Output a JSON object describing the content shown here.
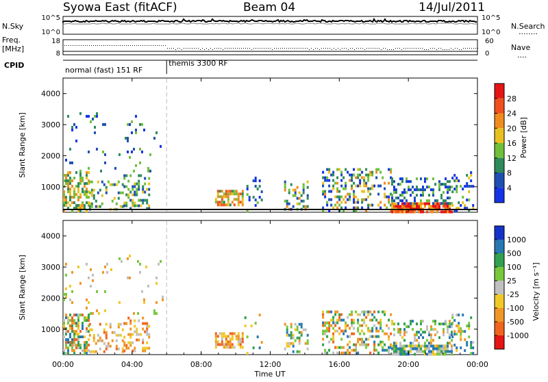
{
  "header": {
    "station": "Syowa East (fitACF)",
    "beam": "Beam 04",
    "date": "14/Jul/2011"
  },
  "top_panels": {
    "nsky_label": "N.Sky",
    "nsearch_label": "N.Search",
    "nsearch_legend": "........",
    "freq_label_line1": "Freq.",
    "freq_label_line2": "[MHz]",
    "nave_label": "Nave",
    "nave_legend": "....",
    "cpid_label": "CPID",
    "nsky_ticks": [
      "10^5",
      "10^0"
    ],
    "nsearch_ticks": [
      "10^5",
      "10^0"
    ],
    "freq_ticks": [
      "18",
      "8"
    ],
    "nave_ticks": [
      "60",
      "0"
    ],
    "cpid_segments": [
      {
        "label": "normal (fast) 151 RF",
        "start_h": 0,
        "end_h": 6
      },
      {
        "label": "themis 3300 RF",
        "start_h": 6,
        "end_h": 24
      }
    ]
  },
  "axes": {
    "ylabel": "Slant Range [km]",
    "xlabel": "Time UT",
    "y_ticks": [
      "1000",
      "2000",
      "3000",
      "4000"
    ],
    "x_ticks": [
      "00:00",
      "04:00",
      "08:00",
      "12:00",
      "16:00",
      "20:00",
      "00:00"
    ]
  },
  "colorbars": {
    "power": {
      "label": "Power [dB]",
      "ticks": [
        "4",
        "8",
        "12",
        "16",
        "20",
        "24",
        "28"
      ],
      "colors": [
        "#1432e6",
        "#1e4fb4",
        "#2e8a5a",
        "#6fbf3a",
        "#e8c020",
        "#f08c1e",
        "#f0501e",
        "#e61414"
      ]
    },
    "velocity": {
      "label": "Velocity [m s⁻¹]",
      "ticks": [
        "1000",
        "500",
        "100",
        "25",
        "-25",
        "-100",
        "-500",
        "-1000"
      ],
      "colors": [
        "#1432c8",
        "#2878b4",
        "#32a050",
        "#78c83c",
        "#c0c0c0",
        "#f0c828",
        "#f09628",
        "#f0641e",
        "#e61414"
      ]
    }
  },
  "chart_data": [
    {
      "type": "heatmap",
      "name": "power",
      "x_range_h": [
        0,
        24
      ],
      "y_range_km": [
        180,
        4500
      ],
      "x_ticks": [
        "00:00",
        "04:00",
        "08:00",
        "12:00",
        "16:00",
        "20:00",
        "00:00"
      ],
      "y_ticks": [
        1000,
        2000,
        3000,
        4000
      ],
      "ylabel": "Slant Range [km]",
      "xlabel": "Time UT",
      "colorbar_ticks_db": [
        4,
        8,
        12,
        16,
        20,
        24,
        28
      ],
      "regions": [
        {
          "t0": 0.0,
          "t1": 1.5,
          "r0": 200,
          "r1": 1500,
          "p": 0.55,
          "lvl": [
            3,
            6
          ]
        },
        {
          "t0": 1.5,
          "t1": 3.5,
          "r0": 300,
          "r1": 1200,
          "p": 0.25,
          "lvl": [
            2,
            5
          ]
        },
        {
          "t0": 3.5,
          "t1": 5.0,
          "r0": 300,
          "r1": 1400,
          "p": 0.35,
          "lvl": [
            2,
            5
          ]
        },
        {
          "t0": 0.0,
          "t1": 5.8,
          "r0": 1500,
          "r1": 3400,
          "p": 0.05,
          "lvl": [
            1,
            4
          ]
        },
        {
          "t0": 8.8,
          "t1": 10.4,
          "r0": 400,
          "r1": 900,
          "p": 0.7,
          "lvl": [
            3,
            7
          ]
        },
        {
          "t0": 10.5,
          "t1": 11.5,
          "r0": 250,
          "r1": 1500,
          "p": 0.12,
          "lvl": [
            1,
            4
          ]
        },
        {
          "t0": 12.8,
          "t1": 14.2,
          "r0": 250,
          "r1": 1200,
          "p": 0.3,
          "lvl": [
            2,
            6
          ]
        },
        {
          "t0": 15.0,
          "t1": 19.0,
          "r0": 250,
          "r1": 1600,
          "p": 0.35,
          "lvl": [
            1,
            6
          ]
        },
        {
          "t0": 19.0,
          "t1": 22.5,
          "r0": 200,
          "r1": 500,
          "p": 0.85,
          "lvl": [
            5,
            8
          ]
        },
        {
          "t0": 19.0,
          "t1": 22.5,
          "r0": 500,
          "r1": 1300,
          "p": 0.35,
          "lvl": [
            1,
            4
          ]
        },
        {
          "t0": 22.5,
          "t1": 23.8,
          "r0": 250,
          "r1": 1500,
          "p": 0.25,
          "lvl": [
            1,
            5
          ]
        }
      ]
    },
    {
      "type": "heatmap",
      "name": "velocity",
      "x_range_h": [
        0,
        24
      ],
      "y_range_km": [
        180,
        4500
      ],
      "x_ticks": [
        "00:00",
        "04:00",
        "08:00",
        "12:00",
        "16:00",
        "20:00",
        "00:00"
      ],
      "y_ticks": [
        1000,
        2000,
        3000,
        4000
      ],
      "ylabel": "Slant Range [km]",
      "xlabel": "Time UT",
      "colorbar_ticks_ms": [
        1000,
        500,
        100,
        25,
        -25,
        -100,
        -500,
        -1000
      ],
      "regions": [
        {
          "t0": 0.0,
          "t1": 1.5,
          "r0": 200,
          "r1": 1500,
          "p": 0.55,
          "lvl": [
            2,
            8
          ]
        },
        {
          "t0": 1.5,
          "t1": 3.5,
          "r0": 300,
          "r1": 1200,
          "p": 0.25,
          "lvl": [
            5,
            8
          ]
        },
        {
          "t0": 3.5,
          "t1": 5.0,
          "r0": 300,
          "r1": 1400,
          "p": 0.35,
          "lvl": [
            5,
            8
          ]
        },
        {
          "t0": 0.0,
          "t1": 5.8,
          "r0": 1500,
          "r1": 3400,
          "p": 0.05,
          "lvl": [
            4,
            7
          ]
        },
        {
          "t0": 8.8,
          "t1": 10.4,
          "r0": 400,
          "r1": 900,
          "p": 0.7,
          "lvl": [
            5,
            8
          ]
        },
        {
          "t0": 10.5,
          "t1": 11.5,
          "r0": 250,
          "r1": 1500,
          "p": 0.12,
          "lvl": [
            1,
            7
          ]
        },
        {
          "t0": 12.8,
          "t1": 14.2,
          "r0": 250,
          "r1": 1200,
          "p": 0.3,
          "lvl": [
            2,
            7
          ]
        },
        {
          "t0": 15.0,
          "t1": 19.0,
          "r0": 250,
          "r1": 1600,
          "p": 0.35,
          "lvl": [
            2,
            8
          ]
        },
        {
          "t0": 19.0,
          "t1": 22.5,
          "r0": 200,
          "r1": 500,
          "p": 0.85,
          "lvl": [
            2,
            6
          ]
        },
        {
          "t0": 19.0,
          "t1": 22.5,
          "r0": 500,
          "r1": 1300,
          "p": 0.35,
          "lvl": [
            2,
            7
          ]
        },
        {
          "t0": 22.5,
          "t1": 23.8,
          "r0": 250,
          "r1": 1500,
          "p": 0.25,
          "lvl": [
            2,
            7
          ]
        }
      ]
    }
  ]
}
